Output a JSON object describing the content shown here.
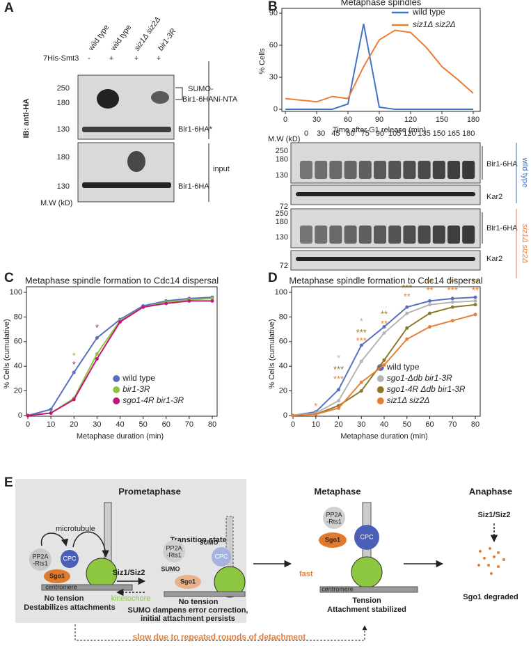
{
  "panel_a": {
    "label": "A",
    "lanes": [
      "wild type",
      "wild type",
      "siz1Δ siz2Δ",
      "bir1-3R"
    ],
    "smt3_label": "7His-Smt3",
    "smt3_signs": [
      "-",
      "+",
      "+",
      "+"
    ],
    "ni_nta_mw": [
      "250",
      "180",
      "130"
    ],
    "input_mw": [
      "180",
      "130"
    ],
    "mw_label": "M.W (kD)",
    "ib_label": "IB: anti-HA",
    "sumo_band": [
      "SUMO-",
      "Bir1-6HA"
    ],
    "ni_nta_band": "Bir1-6HA*",
    "ni_nta": "Ni-NTA",
    "input": "input",
    "input_band": "Bir1-6HA"
  },
  "panel_b": {
    "mw_label": "M.W (kD)",
    "times": [
      "0",
      "30",
      "45",
      "60",
      "75",
      "90",
      "105",
      "120",
      "135",
      "150",
      "165",
      "180"
    ],
    "wt_mw": [
      "250",
      "180",
      "130",
      "72"
    ],
    "mutant_mw": [
      "250",
      "180",
      "130",
      "72"
    ],
    "blot_labels": [
      "Bir1-6HA",
      "Kar2",
      "Bir1-6HA",
      "Kar2"
    ],
    "strains": [
      "wild type",
      "siz1Δ siz2Δ"
    ]
  },
  "chart_data": [
    {
      "type": "line",
      "panel": "B",
      "title": "Metaphase spindles",
      "x_label": "Time after G1 release (min)",
      "y_label": "% Cells",
      "x": [
        0,
        30,
        45,
        60,
        75,
        90,
        105,
        120,
        135,
        150,
        165,
        180
      ],
      "xlim": [
        0,
        180
      ],
      "xticks": [
        0,
        30,
        60,
        90,
        120,
        150,
        180
      ],
      "ylim": [
        0,
        90
      ],
      "yticks": [
        0,
        30,
        60,
        90
      ],
      "legend": "upper right",
      "markers": false,
      "series": [
        {
          "name": "wild type",
          "color": "#4472c4",
          "italic": false,
          "values": [
            0,
            0,
            0,
            5,
            80,
            2,
            0,
            0,
            0,
            0,
            0,
            0
          ]
        },
        {
          "name": "siz1Δ siz2Δ",
          "color": "#ed7d31",
          "italic": true,
          "values": [
            10,
            7,
            12,
            10,
            40,
            65,
            74,
            72,
            58,
            40,
            28,
            15
          ]
        }
      ]
    },
    {
      "type": "line",
      "panel": "C",
      "title": "Metaphase spindle formation to Cdc14 dispersal",
      "x_label": "Metaphase duration  (min)",
      "y_label": "% Cells (cumulative)",
      "x": [
        0,
        10,
        20,
        30,
        40,
        50,
        60,
        70,
        80
      ],
      "xlim": [
        0,
        80
      ],
      "xticks": [
        0,
        10,
        20,
        30,
        40,
        50,
        60,
        70,
        80
      ],
      "ylim": [
        0,
        100
      ],
      "yticks": [
        0,
        20,
        40,
        60,
        80,
        100
      ],
      "legend": "lower right",
      "markers": true,
      "series": [
        {
          "name": "wild type",
          "color": "#5b6fbf",
          "italic": false,
          "values": [
            0,
            5,
            35,
            63,
            78,
            89,
            93,
            95,
            96
          ]
        },
        {
          "name": "bir1-3R",
          "color": "#8dc63f",
          "italic": true,
          "values": [
            0,
            2,
            14,
            50,
            77,
            88,
            92,
            94,
            95
          ]
        },
        {
          "name": "sgo1-4R bir1-3R",
          "color": "#c0187b",
          "italic": true,
          "values": [
            0,
            2,
            13,
            46,
            76,
            88,
            91,
            93,
            93
          ]
        }
      ],
      "annotations": [
        {
          "x": 20,
          "y": 48,
          "text": "*",
          "color": "#8dc63f"
        },
        {
          "x": 20,
          "y": 41,
          "text": "*",
          "color": "#c0187b"
        },
        {
          "x": 30,
          "y": 71,
          "text": "*",
          "color": "#c0187b"
        }
      ]
    },
    {
      "type": "line",
      "panel": "D",
      "title": "Metaphase spindle formation to Cdc14 dispersal",
      "x_label": "Metaphase duration  (min)",
      "y_label": "% Cells (cumulative)",
      "x": [
        0,
        10,
        20,
        30,
        40,
        50,
        60,
        70,
        80
      ],
      "xlim": [
        0,
        80
      ],
      "xticks": [
        0,
        10,
        20,
        30,
        40,
        50,
        60,
        70,
        80
      ],
      "ylim": [
        0,
        100
      ],
      "yticks": [
        0,
        20,
        40,
        60,
        80,
        100
      ],
      "legend": "lower right",
      "markers": true,
      "series": [
        {
          "name": "wild type",
          "color": "#5b6fbf",
          "italic": false,
          "values": [
            0,
            3,
            21,
            57,
            72,
            88,
            93,
            95,
            96
          ]
        },
        {
          "name": "sgo1-Δdb bir1-3R",
          "color": "#b4b4b4",
          "italic": true,
          "values": [
            0,
            2,
            12,
            44,
            67,
            83,
            90,
            92,
            93
          ]
        },
        {
          "name": "sgo1-4R Δdb bir1-3R",
          "color": "#8c7a2a",
          "italic": true,
          "values": [
            0,
            1,
            8,
            20,
            45,
            71,
            83,
            88,
            90
          ]
        },
        {
          "name": "siz1Δ siz2Δ",
          "color": "#e6803a",
          "italic": true,
          "values": [
            0,
            1,
            6,
            27,
            41,
            62,
            72,
            77,
            82
          ]
        }
      ],
      "annotations": [
        {
          "x": 10,
          "y": 7,
          "text": "*",
          "color": "#e6803a"
        },
        {
          "x": 20,
          "y": 46,
          "text": "*",
          "color": "#b4b4b4"
        },
        {
          "x": 20,
          "y": 37,
          "text": "***",
          "color": "#8c7a2a"
        },
        {
          "x": 20,
          "y": 29,
          "text": "***",
          "color": "#e6803a"
        },
        {
          "x": 30,
          "y": 76,
          "text": "*",
          "color": "#b4b4b4"
        },
        {
          "x": 30,
          "y": 67,
          "text": "***",
          "color": "#8c7a2a"
        },
        {
          "x": 30,
          "y": 60,
          "text": "***",
          "color": "#e6803a"
        },
        {
          "x": 40,
          "y": 82,
          "text": "**",
          "color": "#8c7a2a"
        },
        {
          "x": 40,
          "y": 74,
          "text": "**",
          "color": "#e6803a"
        },
        {
          "x": 50,
          "y": 103,
          "text": "***",
          "color": "#8c7a2a"
        },
        {
          "x": 50,
          "y": 96,
          "text": "**",
          "color": "#e6803a"
        },
        {
          "x": 60,
          "y": 108,
          "text": "**",
          "color": "#8c7a2a"
        },
        {
          "x": 60,
          "y": 101,
          "text": "**",
          "color": "#e6803a"
        },
        {
          "x": 70,
          "y": 108,
          "text": "**",
          "color": "#8c7a2a"
        },
        {
          "x": 70,
          "y": 101,
          "text": "***",
          "color": "#e6803a"
        },
        {
          "x": 80,
          "y": 108,
          "text": "**",
          "color": "#8c7a2a"
        },
        {
          "x": 80,
          "y": 101,
          "text": "**",
          "color": "#e6803a"
        }
      ]
    }
  ],
  "panel_e": {
    "label": "E",
    "prometaphase": "Prometaphase",
    "microtubule": "microtubule",
    "pp2a_1": [
      "PP2A",
      "-Rts1"
    ],
    "cpc_1": "CPC",
    "sgo1_1": "Sgo1",
    "centromere_1": "centromere",
    "kinetochore": "kinetochore",
    "no_tension_1": "No tension",
    "destabilizes": "Destabilizes attachments",
    "siz_1": "Siz1/Siz2",
    "transition": "Transition state",
    "sumo_a": "SUMO",
    "sumo_b": "SUMO",
    "cpc_2": "CPC",
    "sgo1_2": "Sgo1",
    "pp2a_2": [
      "PP2A",
      "-Rts1"
    ],
    "no_tension_2": "No tension",
    "dampens": "SUMO dampens error correction,",
    "persists": "initial attachment persists",
    "metaphase": "Metaphase",
    "pp2a_3": [
      "PP2A",
      "-Rts1"
    ],
    "sgo1_3": "Sgo1",
    "cpc_3": "CPC",
    "fast": "fast",
    "centromere_3": "centromere",
    "tension": "Tension",
    "stabilized": "Attachment stabilized",
    "anaphase": "Anaphase",
    "siz_2": "Siz1/Siz2",
    "degraded": "Sgo1 degraded",
    "slow": "slow due to repeated rounds of detachment"
  }
}
